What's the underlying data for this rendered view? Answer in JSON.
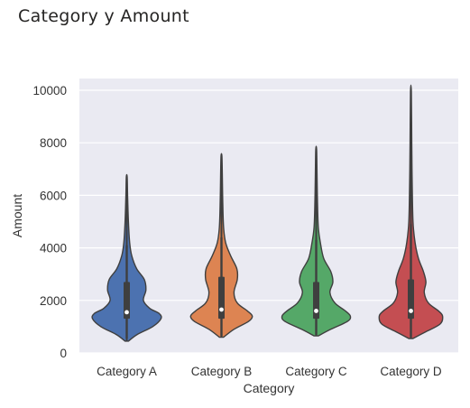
{
  "title": "Category y Amount",
  "chart_data": {
    "type": "violin",
    "xlabel": "Category",
    "ylabel": "Amount",
    "ylim": [
      0,
      10000
    ],
    "yticks": [
      0,
      2000,
      4000,
      6000,
      8000,
      10000
    ],
    "grid": true,
    "categories": [
      "Category A",
      "Category B",
      "Category C",
      "Category D"
    ],
    "colors": [
      "#4c72b0",
      "#dd8452",
      "#55a868",
      "#c44e52"
    ],
    "series": [
      {
        "category": "Category A",
        "min": 450,
        "q1": 1300,
        "median": 1550,
        "q3": 2700,
        "max": 6700,
        "whisker_low": 550,
        "whisker_high": 4100,
        "density": [
          [
            450,
            0.04
          ],
          [
            700,
            0.25
          ],
          [
            1000,
            0.62
          ],
          [
            1300,
            0.82
          ],
          [
            1500,
            0.78
          ],
          [
            1700,
            0.55
          ],
          [
            2000,
            0.4
          ],
          [
            2400,
            0.46
          ],
          [
            2800,
            0.42
          ],
          [
            3200,
            0.24
          ],
          [
            3700,
            0.12
          ],
          [
            4200,
            0.07
          ],
          [
            5000,
            0.04
          ],
          [
            6000,
            0.02
          ],
          [
            6700,
            0.01
          ]
        ]
      },
      {
        "category": "Category B",
        "min": 600,
        "q1": 1300,
        "median": 1650,
        "q3": 2900,
        "max": 7500,
        "whisker_low": 650,
        "whisker_high": 4400,
        "density": [
          [
            600,
            0.05
          ],
          [
            900,
            0.3
          ],
          [
            1200,
            0.65
          ],
          [
            1400,
            0.74
          ],
          [
            1600,
            0.62
          ],
          [
            1900,
            0.38
          ],
          [
            2300,
            0.3
          ],
          [
            2800,
            0.38
          ],
          [
            3200,
            0.37
          ],
          [
            3700,
            0.22
          ],
          [
            4200,
            0.1
          ],
          [
            4800,
            0.05
          ],
          [
            5800,
            0.03
          ],
          [
            6800,
            0.02
          ],
          [
            7500,
            0.01
          ]
        ]
      },
      {
        "category": "Category C",
        "min": 650,
        "q1": 1300,
        "median": 1600,
        "q3": 2700,
        "max": 7750,
        "whisker_low": 700,
        "whisker_high": 4300,
        "density": [
          [
            650,
            0.05
          ],
          [
            900,
            0.35
          ],
          [
            1200,
            0.75
          ],
          [
            1400,
            0.82
          ],
          [
            1600,
            0.7
          ],
          [
            1900,
            0.45
          ],
          [
            2300,
            0.33
          ],
          [
            2700,
            0.4
          ],
          [
            3100,
            0.35
          ],
          [
            3600,
            0.18
          ],
          [
            4200,
            0.1
          ],
          [
            4800,
            0.05
          ],
          [
            5800,
            0.03
          ],
          [
            6800,
            0.02
          ],
          [
            7750,
            0.01
          ]
        ]
      },
      {
        "category": "Category D",
        "min": 550,
        "q1": 1300,
        "median": 1600,
        "q3": 2800,
        "max": 9950,
        "whisker_low": 600,
        "whisker_high": 4900,
        "density": [
          [
            550,
            0.05
          ],
          [
            800,
            0.35
          ],
          [
            1100,
            0.7
          ],
          [
            1400,
            0.76
          ],
          [
            1600,
            0.66
          ],
          [
            1900,
            0.42
          ],
          [
            2300,
            0.32
          ],
          [
            2700,
            0.36
          ],
          [
            3100,
            0.3
          ],
          [
            3600,
            0.18
          ],
          [
            4200,
            0.1
          ],
          [
            5000,
            0.05
          ],
          [
            6500,
            0.03
          ],
          [
            8000,
            0.02
          ],
          [
            9950,
            0.01
          ]
        ]
      }
    ]
  }
}
